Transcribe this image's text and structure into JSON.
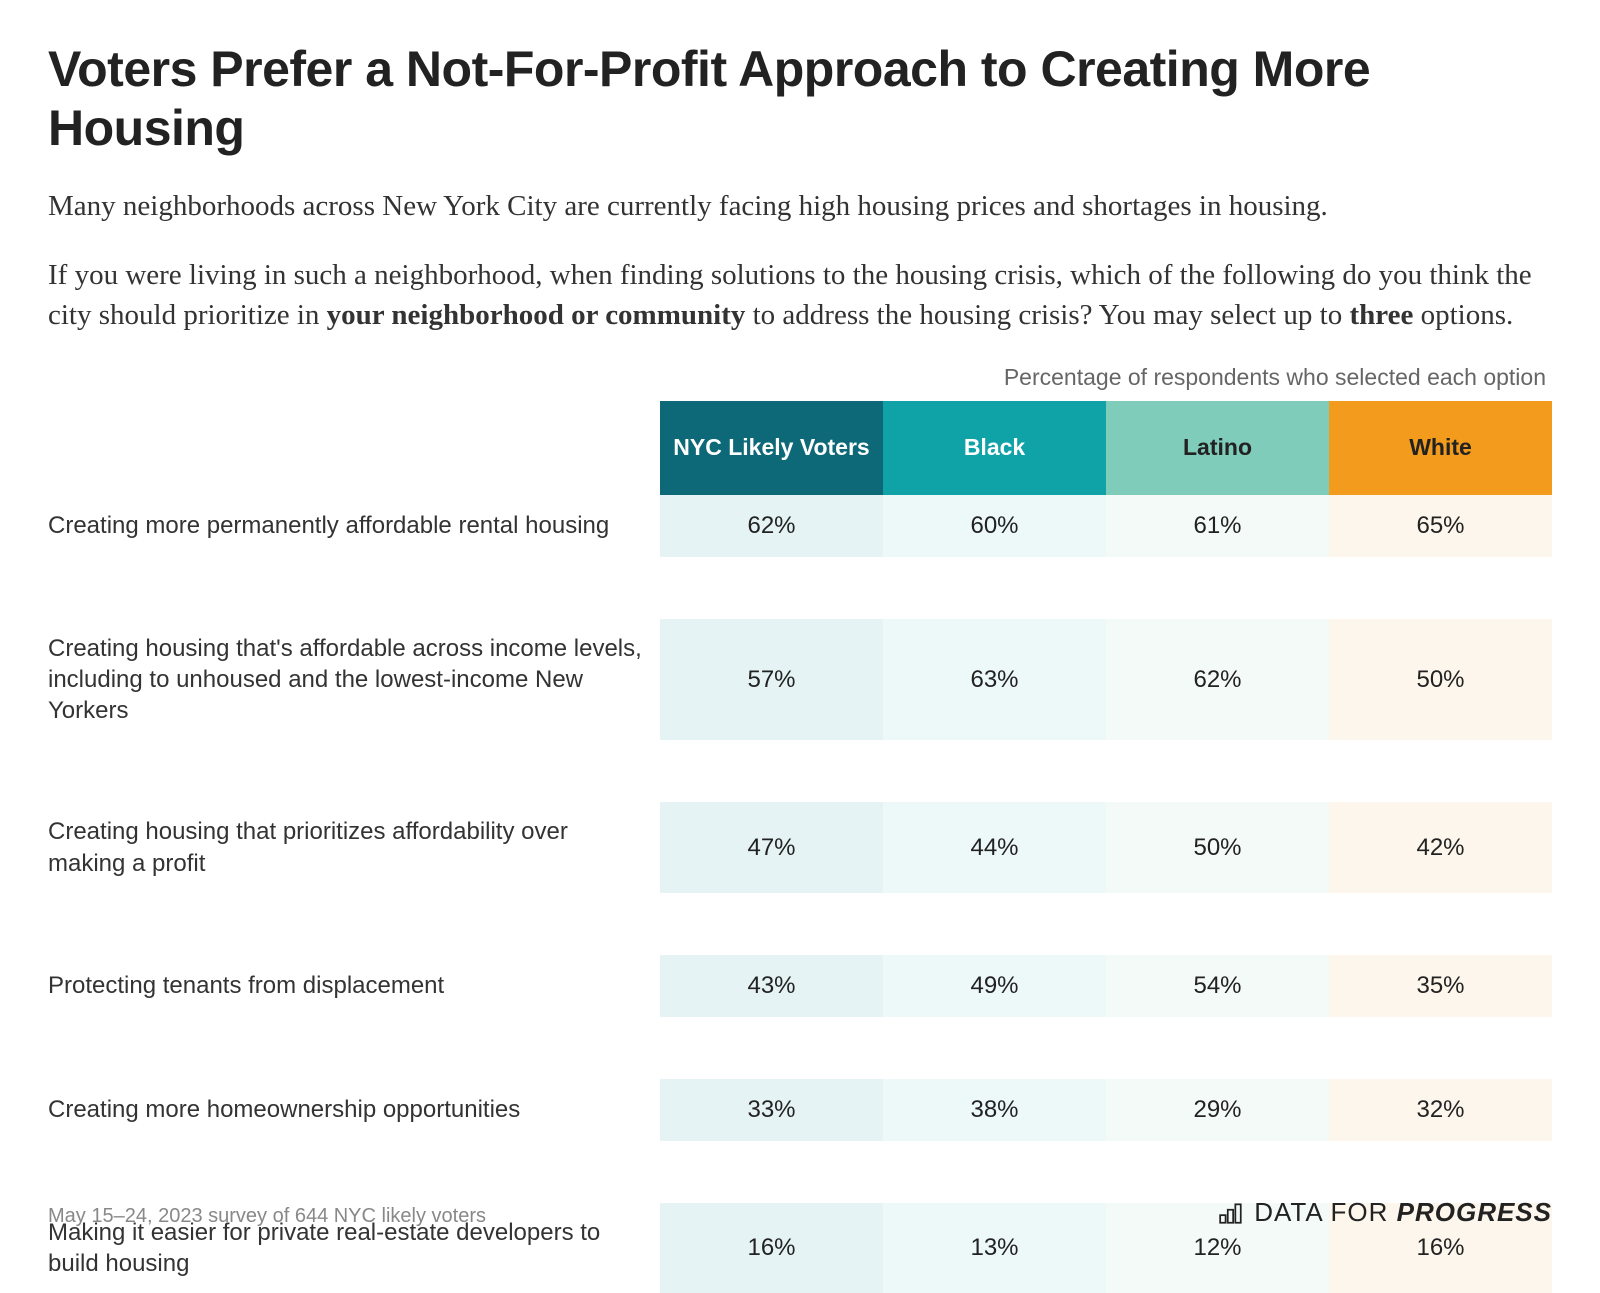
{
  "title": "Voters Prefer a Not-For-Profit Approach to Creating More Housing",
  "intro_para1": "Many neighborhoods across New York City are currently facing high housing prices and shortages in housing.",
  "intro_para2_a": "If you were living in such a neighborhood, when finding solutions to the housing crisis, which of the following do you think the city should prioritize in ",
  "intro_bold1": "your neighborhood or community",
  "intro_para2_b": " to address the housing crisis? You may select up to ",
  "intro_bold2": "three",
  "intro_para2_c": " options.",
  "table": {
    "caption": "Percentage of respondents who selected each option",
    "columns": [
      {
        "label": "NYC Likely Voters",
        "bg": "#0d6978",
        "fg": "#ffffff",
        "cell_bg": "#e5f3f4"
      },
      {
        "label": "Black",
        "bg": "#0fa2a7",
        "fg": "#ffffff",
        "cell_bg": "#edf8f8"
      },
      {
        "label": "Latino",
        "bg": "#7fccbb",
        "fg": "#222222",
        "cell_bg": "#f3faf8"
      },
      {
        "label": "White",
        "bg": "#f29b1d",
        "fg": "#222222",
        "cell_bg": "#fdf6ec"
      }
    ],
    "rows": [
      {
        "label": "Creating more permanently affordable rental housing",
        "values": [
          "62%",
          "60%",
          "61%",
          "65%"
        ]
      },
      {
        "label": "Creating housing that's affordable across income levels, including to unhoused and the lowest-income New Yorkers",
        "values": [
          "57%",
          "63%",
          "62%",
          "50%"
        ]
      },
      {
        "label": "Creating housing that prioritizes affordability over making a profit",
        "values": [
          "47%",
          "44%",
          "50%",
          "42%"
        ]
      },
      {
        "label": "Protecting tenants from displacement",
        "values": [
          "43%",
          "49%",
          "54%",
          "35%"
        ]
      },
      {
        "label": "Creating more homeownership opportunities",
        "values": [
          "33%",
          "38%",
          "29%",
          "32%"
        ]
      },
      {
        "label": "Making it easier for private real-estate developers to build housing",
        "values": [
          "16%",
          "13%",
          "12%",
          "16%"
        ]
      }
    ]
  },
  "footnote": "May 15–24, 2023 survey of 644 NYC likely voters",
  "brand_a": "DATA FOR ",
  "brand_b": "PROGRESS"
}
